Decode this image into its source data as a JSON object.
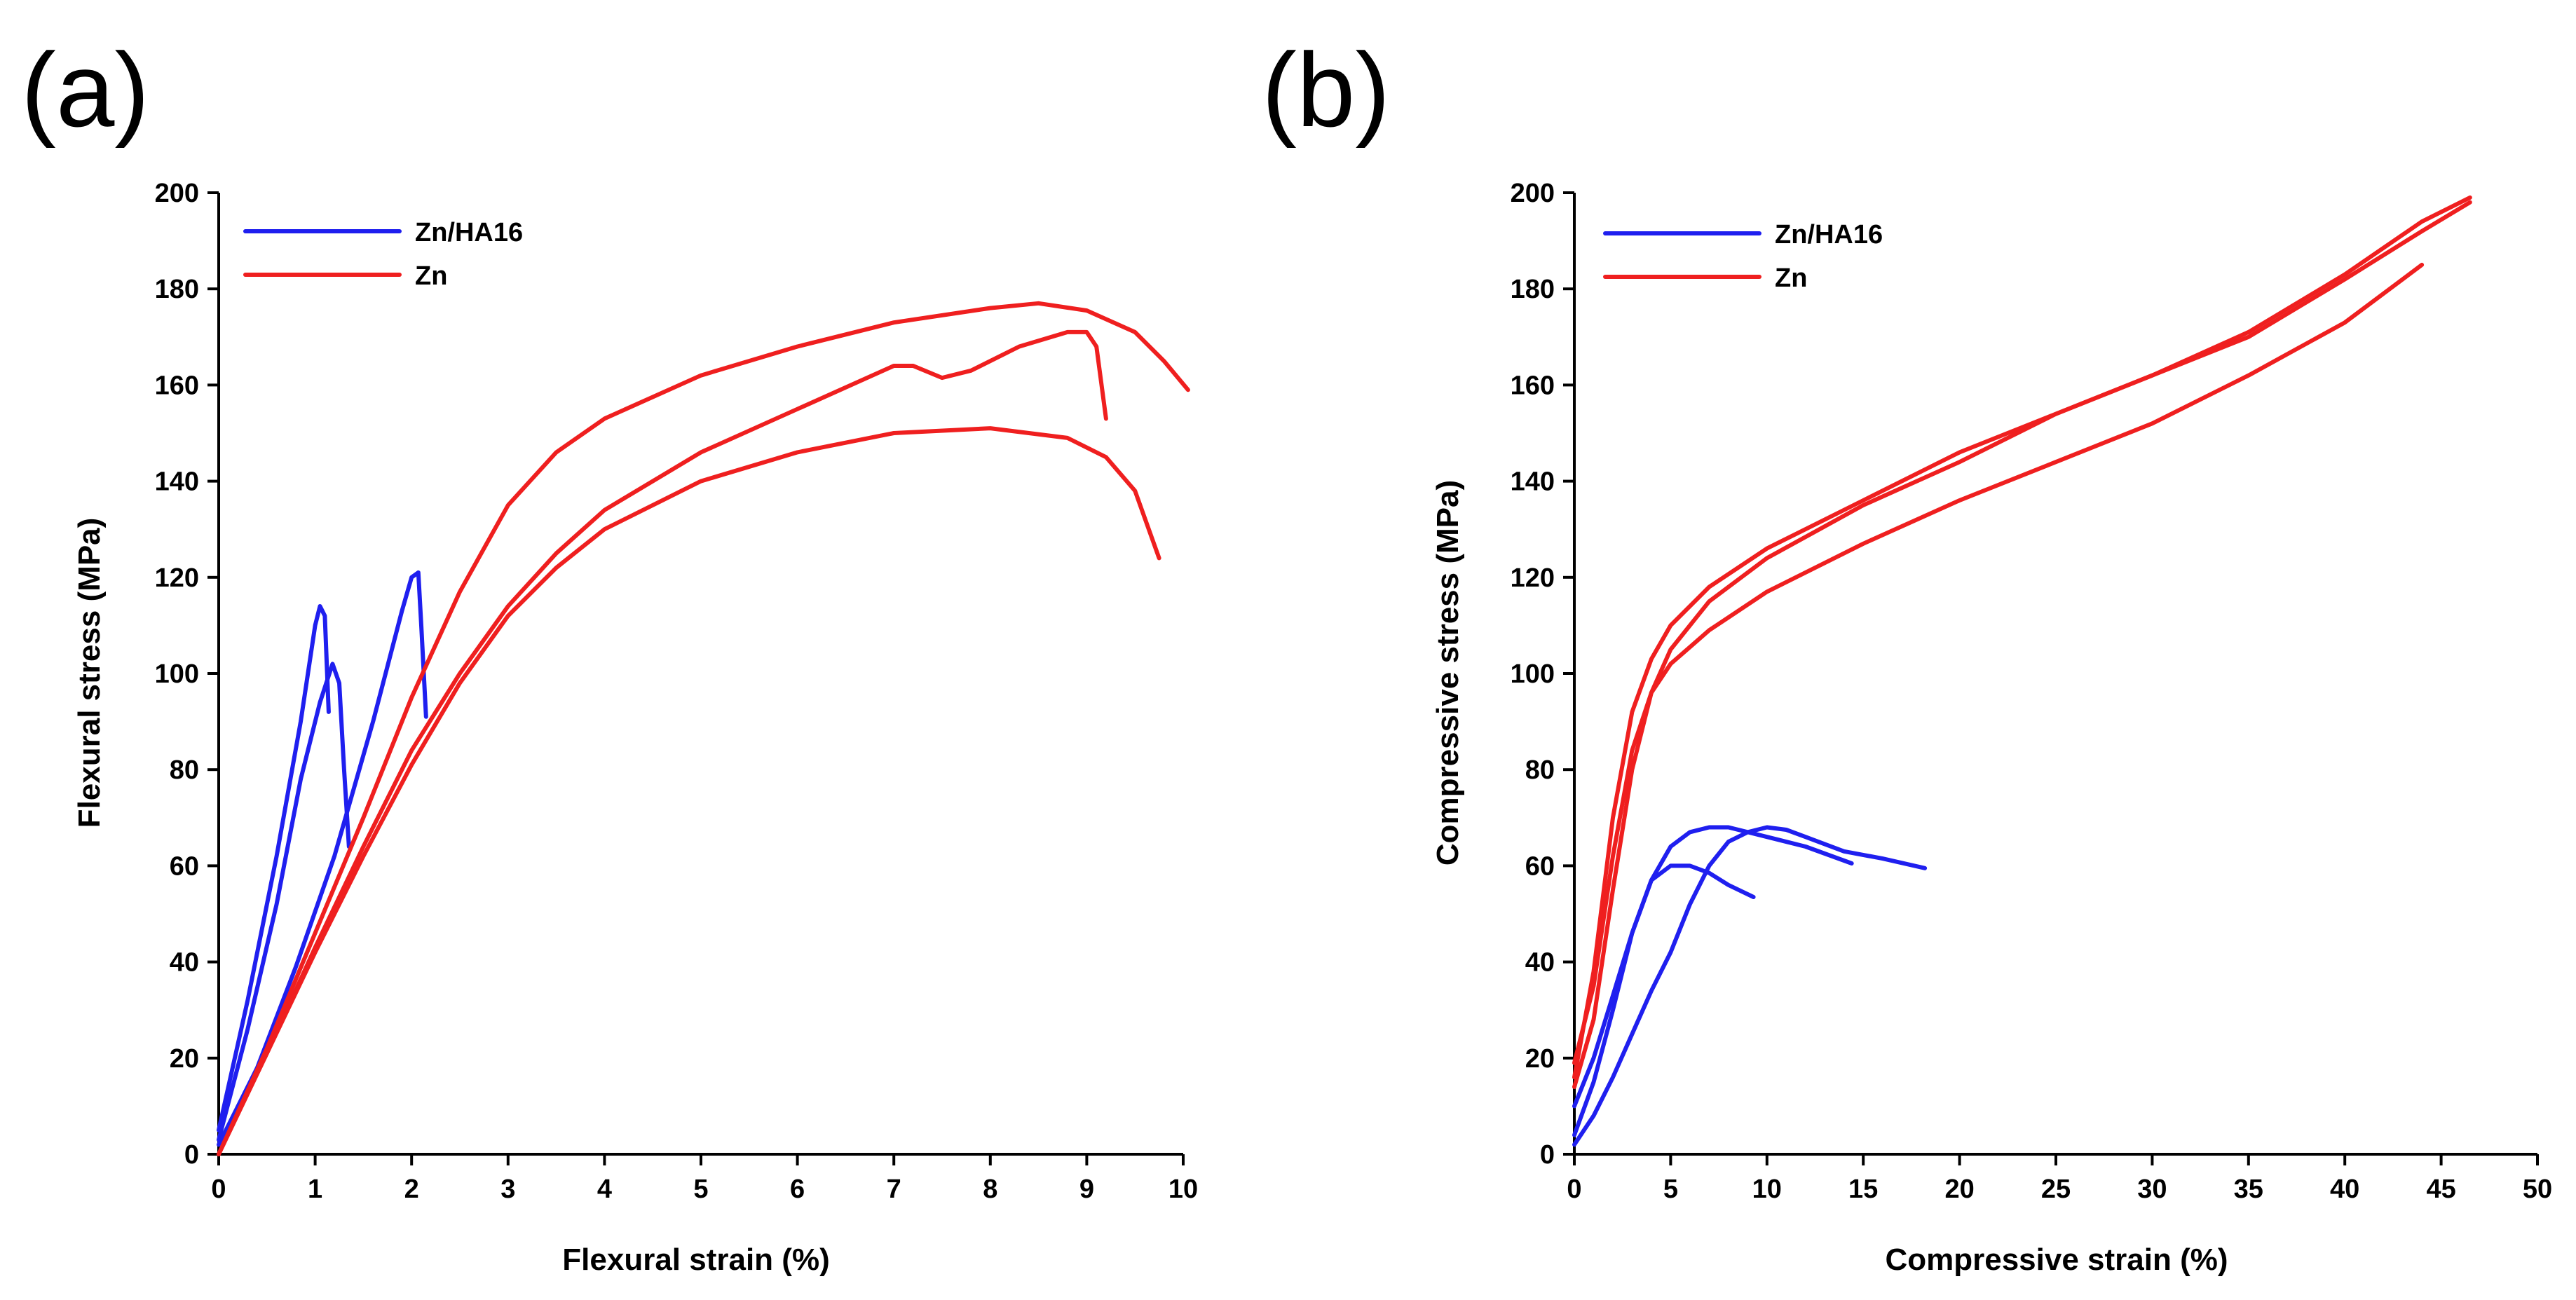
{
  "colors": {
    "zn_ha16": "#1f1fef",
    "zn": "#ef1f1f"
  },
  "chart_data": [
    {
      "type": "line",
      "panel_label": "(a)",
      "xlabel": "Flexural strain (%)",
      "ylabel": "Flexural stress (MPa)",
      "xlim": [
        0,
        10
      ],
      "ylim": [
        0,
        200
      ],
      "xticks": [
        0,
        1,
        2,
        3,
        4,
        5,
        6,
        7,
        8,
        9,
        10
      ],
      "yticks": [
        0,
        20,
        40,
        60,
        80,
        100,
        120,
        140,
        160,
        180,
        200
      ],
      "grid": false,
      "legend": {
        "position": "top-left",
        "entries": [
          {
            "label": "Zn/HA16",
            "color": "#1f1fef"
          },
          {
            "label": "Zn",
            "color": "#ef1f1f"
          }
        ]
      },
      "series": [
        {
          "group": "Zn/HA16",
          "color": "#1f1fef",
          "points": [
            [
              0,
              5
            ],
            [
              0.3,
              32
            ],
            [
              0.6,
              62
            ],
            [
              0.85,
              90
            ],
            [
              1.0,
              110
            ],
            [
              1.05,
              114
            ],
            [
              1.1,
              112
            ],
            [
              1.14,
              92
            ]
          ]
        },
        {
          "group": "Zn/HA16",
          "color": "#1f1fef",
          "points": [
            [
              0,
              3
            ],
            [
              0.3,
              26
            ],
            [
              0.6,
              52
            ],
            [
              0.85,
              78
            ],
            [
              1.05,
              94
            ],
            [
              1.18,
              102
            ],
            [
              1.25,
              98
            ],
            [
              1.3,
              80
            ],
            [
              1.35,
              64
            ]
          ]
        },
        {
          "group": "Zn/HA16",
          "color": "#1f1fef",
          "points": [
            [
              0,
              2
            ],
            [
              0.4,
              18
            ],
            [
              0.8,
              39
            ],
            [
              1.2,
              62
            ],
            [
              1.6,
              90
            ],
            [
              1.9,
              113
            ],
            [
              2.0,
              120
            ],
            [
              2.07,
              121
            ],
            [
              2.1,
              110
            ],
            [
              2.15,
              91
            ]
          ]
        },
        {
          "group": "Zn",
          "color": "#ef1f1f",
          "points": [
            [
              0,
              0
            ],
            [
              0.5,
              22
            ],
            [
              1.0,
              46
            ],
            [
              1.5,
              70
            ],
            [
              2.0,
              95
            ],
            [
              2.5,
              117
            ],
            [
              3.0,
              135
            ],
            [
              3.5,
              146
            ],
            [
              4.0,
              153
            ],
            [
              5.0,
              162
            ],
            [
              6.0,
              168
            ],
            [
              7.0,
              173
            ],
            [
              8.0,
              176
            ],
            [
              8.5,
              177
            ],
            [
              9.0,
              175.5
            ],
            [
              9.5,
              171
            ],
            [
              9.8,
              165
            ],
            [
              10.05,
              159
            ]
          ]
        },
        {
          "group": "Zn",
          "color": "#ef1f1f",
          "points": [
            [
              0,
              0
            ],
            [
              0.5,
              21
            ],
            [
              1.0,
              43
            ],
            [
              1.5,
              64
            ],
            [
              2.0,
              84
            ],
            [
              2.5,
              100
            ],
            [
              3.0,
              114
            ],
            [
              3.5,
              125
            ],
            [
              4.0,
              134
            ],
            [
              5.0,
              146
            ],
            [
              6.0,
              155
            ],
            [
              7.0,
              164
            ],
            [
              7.2,
              164
            ],
            [
              7.5,
              161.5
            ],
            [
              7.8,
              163
            ],
            [
              8.3,
              168
            ],
            [
              8.8,
              171
            ],
            [
              9.0,
              171
            ],
            [
              9.1,
              168
            ],
            [
              9.2,
              153
            ]
          ]
        },
        {
          "group": "Zn",
          "color": "#ef1f1f",
          "points": [
            [
              0,
              0
            ],
            [
              0.5,
              21
            ],
            [
              1.0,
              42
            ],
            [
              1.5,
              62
            ],
            [
              2.0,
              81
            ],
            [
              2.5,
              98
            ],
            [
              3.0,
              112
            ],
            [
              3.5,
              122
            ],
            [
              4.0,
              130
            ],
            [
              5.0,
              140
            ],
            [
              6.0,
              146
            ],
            [
              7.0,
              150
            ],
            [
              8.0,
              151
            ],
            [
              8.8,
              149
            ],
            [
              9.2,
              145
            ],
            [
              9.5,
              138
            ],
            [
              9.75,
              124
            ]
          ]
        }
      ]
    },
    {
      "type": "line",
      "panel_label": "(b)",
      "xlabel": "Compressive strain (%)",
      "ylabel": "Compressive stress (MPa)",
      "xlim": [
        0,
        50
      ],
      "ylim": [
        0,
        200
      ],
      "xticks": [
        0,
        5,
        10,
        15,
        20,
        25,
        30,
        35,
        40,
        45,
        50
      ],
      "yticks": [
        0,
        20,
        40,
        60,
        80,
        100,
        120,
        140,
        160,
        180,
        200
      ],
      "grid": false,
      "legend": {
        "position": "top-left",
        "entries": [
          {
            "label": "Zn/HA16",
            "color": "#1f1fef"
          },
          {
            "label": "Zn",
            "color": "#ef1f1f"
          }
        ]
      },
      "series": [
        {
          "group": "Zn/HA16",
          "color": "#1f1fef",
          "points": [
            [
              0,
              4
            ],
            [
              1,
              15
            ],
            [
              2,
              30
            ],
            [
              3,
              46
            ],
            [
              4,
              57
            ],
            [
              5,
              60
            ],
            [
              6,
              60
            ],
            [
              7,
              58.5
            ],
            [
              8,
              56
            ],
            [
              9.3,
              53.5
            ]
          ]
        },
        {
          "group": "Zn/HA16",
          "color": "#1f1fef",
          "points": [
            [
              0,
              10
            ],
            [
              1,
              20
            ],
            [
              2,
              33
            ],
            [
              3,
              46
            ],
            [
              4,
              57
            ],
            [
              5,
              64
            ],
            [
              6,
              67
            ],
            [
              7,
              68
            ],
            [
              8,
              68
            ],
            [
              10,
              66
            ],
            [
              12,
              64
            ],
            [
              14.4,
              60.5
            ]
          ]
        },
        {
          "group": "Zn/HA16",
          "color": "#1f1fef",
          "points": [
            [
              0,
              2
            ],
            [
              1,
              8
            ],
            [
              2,
              16
            ],
            [
              3,
              25
            ],
            [
              4,
              34
            ],
            [
              5,
              42
            ],
            [
              6,
              52
            ],
            [
              7,
              60
            ],
            [
              8,
              65
            ],
            [
              9,
              67
            ],
            [
              10,
              68
            ],
            [
              11,
              67.5
            ],
            [
              12,
              66
            ],
            [
              14,
              63
            ],
            [
              16,
              61.5
            ],
            [
              18.2,
              59.5
            ]
          ]
        },
        {
          "group": "Zn",
          "color": "#ef1f1f",
          "points": [
            [
              0,
              16
            ],
            [
              1,
              38
            ],
            [
              2,
              70
            ],
            [
              3,
              92
            ],
            [
              4,
              103
            ],
            [
              5,
              110
            ],
            [
              7,
              118
            ],
            [
              10,
              126
            ],
            [
              15,
              136
            ],
            [
              20,
              146
            ],
            [
              25,
              154
            ],
            [
              30,
              162
            ],
            [
              35,
              171
            ],
            [
              40,
              183
            ],
            [
              44,
              194
            ],
            [
              46.5,
              199
            ]
          ]
        },
        {
          "group": "Zn",
          "color": "#ef1f1f",
          "points": [
            [
              0,
              14
            ],
            [
              1,
              28
            ],
            [
              2,
              55
            ],
            [
              3,
              80
            ],
            [
              4,
              96
            ],
            [
              5,
              105
            ],
            [
              7,
              115
            ],
            [
              10,
              124
            ],
            [
              15,
              135
            ],
            [
              20,
              144
            ],
            [
              25,
              154
            ],
            [
              30,
              162
            ],
            [
              35,
              170
            ],
            [
              40,
              182
            ],
            [
              44,
              192
            ],
            [
              46.5,
              198
            ]
          ]
        },
        {
          "group": "Zn",
          "color": "#ef1f1f",
          "points": [
            [
              0,
              19
            ],
            [
              1,
              35
            ],
            [
              2,
              62
            ],
            [
              3,
              84
            ],
            [
              4,
              96
            ],
            [
              5,
              102
            ],
            [
              7,
              109
            ],
            [
              10,
              117
            ],
            [
              15,
              127
            ],
            [
              20,
              136
            ],
            [
              25,
              144
            ],
            [
              30,
              152
            ],
            [
              35,
              162
            ],
            [
              40,
              173
            ],
            [
              44,
              185
            ]
          ]
        }
      ]
    }
  ]
}
